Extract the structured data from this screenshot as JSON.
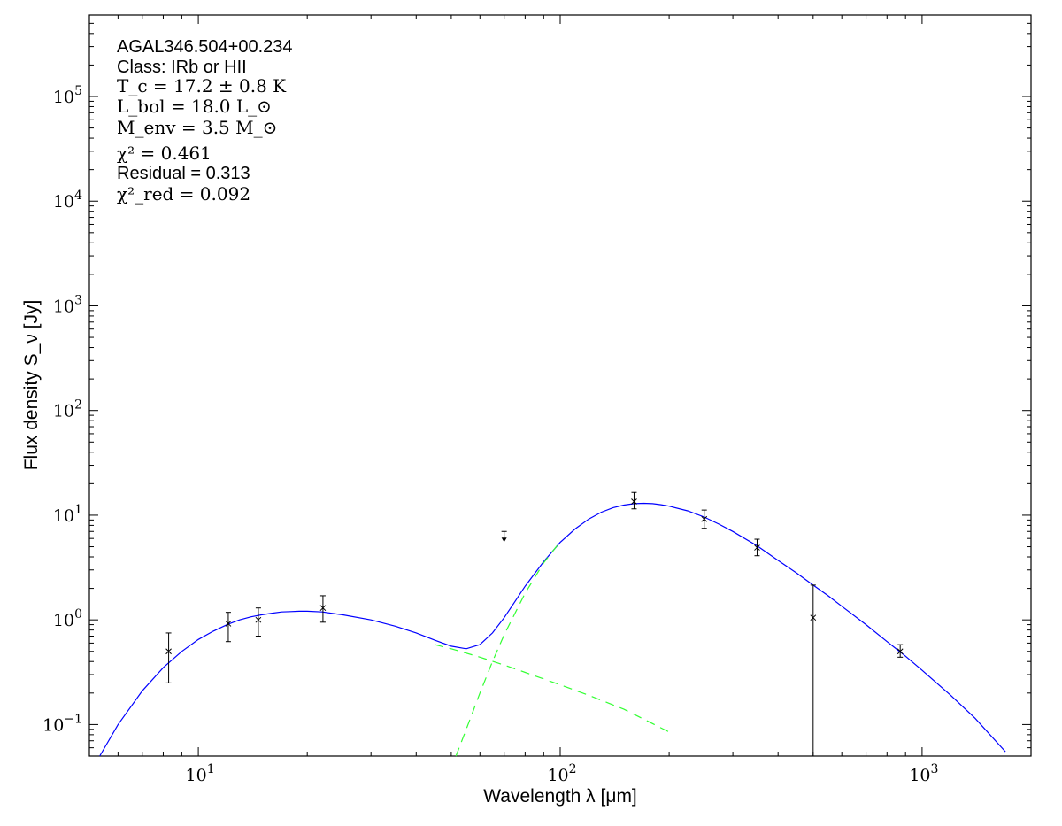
{
  "chart_data": {
    "type": "scatter",
    "title": "",
    "xlabel": "Wavelength λ [μm]",
    "ylabel": "Flux density S_ν [Jy]",
    "x_scale": "log",
    "y_scale": "log",
    "xlim": [
      5,
      2000
    ],
    "ylim": [
      0.05,
      600000
    ],
    "grid": false,
    "annotations": {
      "source": "AGAL346.504+00.234",
      "class": "Class: IRb or HII",
      "tc": "T_c = 17.2 ± 0.8 K",
      "lbol": "L_bol = 18.0 L_⊙",
      "menv": "M_env = 3.5 M_⊙",
      "chi2": "χ² = 0.461",
      "residual": "Residual = 0.313",
      "chi2red": "χ²_red = 0.092"
    },
    "x_ticks": [
      {
        "value": 10,
        "label": "10^1"
      },
      {
        "value": 100,
        "label": "10^2"
      },
      {
        "value": 1000,
        "label": "10^3"
      }
    ],
    "y_ticks": [
      {
        "value": 0.1,
        "label": "10^-1"
      },
      {
        "value": 1,
        "label": "10^0"
      },
      {
        "value": 10,
        "label": "10^1"
      },
      {
        "value": 100,
        "label": "10^2"
      },
      {
        "value": 1000,
        "label": "10^3"
      },
      {
        "value": 10000,
        "label": "10^4"
      },
      {
        "value": 100000,
        "label": "10^5"
      }
    ],
    "points": [
      {
        "x": 8.28,
        "y": 0.5,
        "ylo": 0.25,
        "yhi": 0.75
      },
      {
        "x": 12.1,
        "y": 0.92,
        "ylo": 0.62,
        "yhi": 1.18
      },
      {
        "x": 14.65,
        "y": 1.0,
        "ylo": 0.7,
        "yhi": 1.3
      },
      {
        "x": 22.1,
        "y": 1.3,
        "ylo": 0.95,
        "yhi": 1.7
      },
      {
        "x": 160,
        "y": 13.5,
        "ylo": 11.5,
        "yhi": 16.5
      },
      {
        "x": 250,
        "y": 9.2,
        "ylo": 7.5,
        "yhi": 11.2
      },
      {
        "x": 350,
        "y": 4.9,
        "ylo": 4.1,
        "yhi": 5.9
      },
      {
        "x": 500,
        "y": 1.05,
        "ylo": 0.01,
        "yhi": 2.15
      },
      {
        "x": 870,
        "y": 0.5,
        "ylo": 0.44,
        "yhi": 0.58
      }
    ],
    "upper_limits": [
      {
        "x": 70,
        "y": 7.0
      }
    ],
    "series": [
      {
        "style": "solid",
        "color": "#0000ff",
        "x": [
          5.34,
          6.0,
          7.0,
          8.0,
          9.0,
          10.0,
          11.0,
          12.0,
          13.0,
          14.0,
          15.0,
          16.0,
          17.0,
          18.0,
          19.0,
          20.0,
          22.0,
          25.0,
          30.0,
          35.0,
          40.0,
          45.0,
          50.0,
          55.0,
          60.0,
          65.0,
          70.0,
          75.0,
          80.0,
          90.0,
          100.0,
          110.0,
          120.0,
          130.0,
          140.0,
          150.0,
          160.0,
          170.0,
          180.0,
          190.0,
          200.0,
          225.0,
          250.0,
          275.0,
          300.0,
          350.0,
          400.0,
          450.0,
          500.0,
          550.0,
          600.0,
          700.0,
          800.0,
          900.0,
          1000.0,
          1200.0,
          1400.0,
          1700.0
        ],
        "y": [
          0.05,
          0.1,
          0.21,
          0.35,
          0.5,
          0.65,
          0.78,
          0.9,
          1.0,
          1.07,
          1.12,
          1.16,
          1.19,
          1.2,
          1.21,
          1.21,
          1.19,
          1.12,
          1.0,
          0.87,
          0.75,
          0.64,
          0.56,
          0.53,
          0.58,
          0.75,
          1.05,
          1.5,
          2.1,
          3.6,
          5.5,
          7.4,
          9.2,
          10.7,
          11.8,
          12.5,
          12.9,
          13.0,
          12.9,
          12.6,
          12.2,
          11.0,
          9.6,
          8.2,
          7.0,
          5.1,
          3.7,
          2.8,
          2.15,
          1.7,
          1.35,
          0.9,
          0.62,
          0.45,
          0.33,
          0.19,
          0.115,
          0.055
        ]
      },
      {
        "style": "dashed",
        "color": "#33ff33",
        "x": [
          45.0,
          50.0,
          60.0,
          70.0,
          80.0,
          100.0,
          120.0,
          150.0,
          200.0
        ],
        "y": [
          0.58,
          0.53,
          0.44,
          0.37,
          0.315,
          0.24,
          0.19,
          0.14,
          0.085
        ]
      },
      {
        "style": "dashed",
        "color": "#33ff33",
        "x": [
          51.5,
          55.0,
          60.0,
          65.0,
          70.0,
          80.0,
          90.0,
          100.0
        ],
        "y": [
          0.05,
          0.09,
          0.2,
          0.4,
          0.72,
          1.8,
          3.5,
          5.6
        ]
      }
    ]
  }
}
